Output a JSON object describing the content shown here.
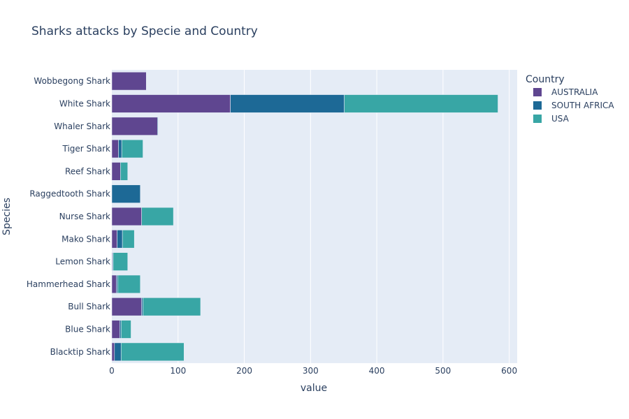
{
  "chart_data": {
    "type": "bar",
    "orientation": "horizontal",
    "barmode": "stack",
    "title": "Sharks attacks by Specie and Country",
    "xlabel": "value",
    "ylabel": "Species",
    "xlim": [
      0,
      612
    ],
    "xticks": [
      0,
      100,
      200,
      300,
      400,
      500,
      600
    ],
    "grid": true,
    "legend_title": "Country",
    "legend_position": "right",
    "categories": [
      "Blacktip Shark",
      "Blue Shark",
      "Bull Shark",
      "Hammerhead Shark",
      "Lemon Shark",
      "Mako Shark",
      "Nurse Shark",
      "Raggedtooth Shark",
      "Reef Shark",
      "Tiger Shark",
      "Whaler Shark",
      "White Shark",
      "Wobbegong Shark"
    ],
    "series": [
      {
        "name": "AUSTRALIA",
        "color": "#5f4690",
        "values": [
          4,
          12,
          45,
          7,
          1,
          8,
          45,
          0,
          13,
          10,
          69,
          179,
          52
        ]
      },
      {
        "name": "SOUTH AFRICA",
        "color": "#1d6996",
        "values": [
          10,
          2,
          2,
          2,
          1,
          8,
          0,
          43,
          0,
          5,
          1,
          172,
          0
        ]
      },
      {
        "name": "USA",
        "color": "#38a6a5",
        "values": [
          95,
          15,
          87,
          34,
          22,
          18,
          48,
          0,
          11,
          32,
          0,
          232,
          0
        ]
      }
    ]
  }
}
